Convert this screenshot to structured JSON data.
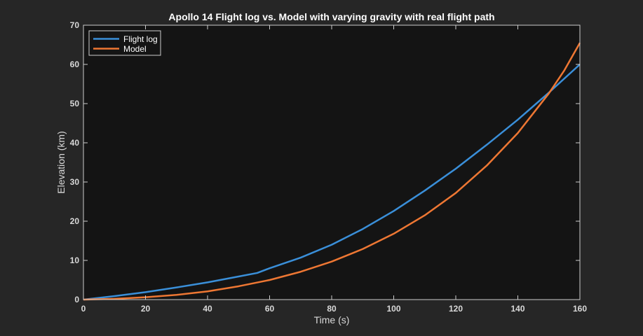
{
  "chart_data": {
    "type": "line",
    "title": "Apollo 14 Flight log vs. Model with varying gravity with real flight path",
    "xlabel": "Time (s)",
    "ylabel": "Elevation (km)",
    "xlim": [
      0,
      160
    ],
    "ylim": [
      0,
      70
    ],
    "xticks": [
      0,
      20,
      40,
      60,
      80,
      100,
      120,
      140,
      160
    ],
    "yticks": [
      0,
      10,
      20,
      30,
      40,
      50,
      60,
      70
    ],
    "xtick_labels": [
      "0",
      "20",
      "40",
      "60",
      "80",
      "100",
      "120",
      "140",
      "160"
    ],
    "ytick_labels": [
      "0",
      "10",
      "20",
      "30",
      "40",
      "50",
      "60",
      "70"
    ],
    "grid": false,
    "legend_position": "top-left",
    "series": [
      {
        "name": "Flight log",
        "color": "#3a8fd9",
        "x": [
          0,
          10,
          20,
          30,
          40,
          50,
          56,
          60,
          70,
          80,
          90,
          100,
          110,
          120,
          130,
          140,
          150,
          160
        ],
        "y": [
          0,
          0.9,
          1.9,
          3.1,
          4.4,
          5.9,
          6.8,
          8.0,
          10.7,
          14.0,
          18.0,
          22.6,
          27.8,
          33.4,
          39.5,
          45.9,
          52.8,
          60.0
        ]
      },
      {
        "name": "Model",
        "color": "#ee7733",
        "x": [
          0,
          10,
          20,
          30,
          40,
          50,
          60,
          70,
          80,
          90,
          100,
          110,
          120,
          130,
          140,
          150,
          155,
          160
        ],
        "y": [
          0,
          0.2,
          0.6,
          1.2,
          2.1,
          3.4,
          5.0,
          7.1,
          9.7,
          12.9,
          16.8,
          21.5,
          27.2,
          34.2,
          42.5,
          52.6,
          58.5,
          65.5
        ]
      }
    ]
  }
}
